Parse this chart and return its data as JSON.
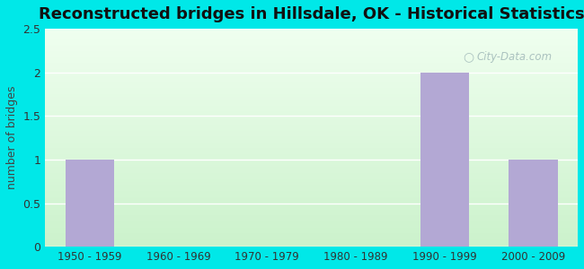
{
  "title": "Reconstructed bridges in Hillsdale, OK - Historical Statistics",
  "categories": [
    "1950 - 1959",
    "1960 - 1969",
    "1970 - 1979",
    "1980 - 1989",
    "1990 - 1999",
    "2000 - 2009"
  ],
  "values": [
    1,
    0,
    0,
    0,
    2,
    1
  ],
  "bar_color": "#b3a8d4",
  "ylabel": "number of bridges",
  "ylim": [
    0,
    2.5
  ],
  "yticks": [
    0,
    0.5,
    1,
    1.5,
    2,
    2.5
  ],
  "background_outer": "#00e8e8",
  "background_inner": "#e8f5e0",
  "title_fontsize": 13,
  "watermark": "City-Data.com"
}
